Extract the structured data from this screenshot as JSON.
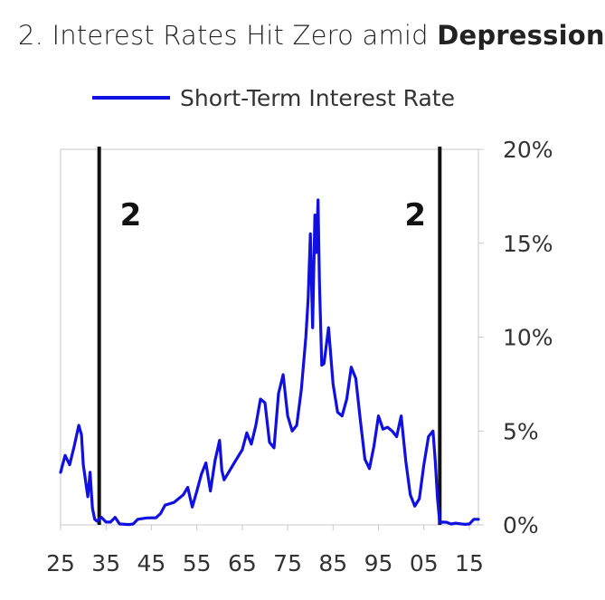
{
  "title": {
    "prefix": "2. Interest Rates Hit Zero amid ",
    "bold": "Depression"
  },
  "chart_data": {
    "type": "line",
    "title": "2. Interest Rates Hit Zero amid Depression",
    "xlabel": "",
    "ylabel": "",
    "xlim": [
      1925,
      2017
    ],
    "ylim": [
      0,
      20
    ],
    "x_tick_labels": [
      "25",
      "35",
      "45",
      "55",
      "65",
      "75",
      "85",
      "95",
      "05",
      "15"
    ],
    "x_tick_values": [
      1925,
      1935,
      1945,
      1955,
      1965,
      1975,
      1985,
      1995,
      2005,
      2015
    ],
    "y_tick_labels": [
      "0%",
      "5%",
      "10%",
      "15%",
      "20%"
    ],
    "y_tick_values": [
      0,
      5,
      10,
      15,
      20
    ],
    "y_axis_side": "right",
    "grid": false,
    "legend_position": "top-center",
    "series": [
      {
        "name": "Short-Term Interest Rate",
        "color": "#1010e0",
        "x": [
          1925,
          1926,
          1927,
          1928,
          1929,
          1929.6,
          1930,
          1931,
          1931.5,
          1932,
          1932.5,
          1933,
          1934,
          1935,
          1936,
          1937,
          1938,
          1940,
          1941,
          1942,
          1944,
          1946,
          1947,
          1948,
          1950,
          1952,
          1953,
          1954,
          1955,
          1956,
          1957,
          1958,
          1959,
          1960,
          1960.5,
          1961,
          1962,
          1963,
          1964,
          1965,
          1966,
          1967,
          1968,
          1969,
          1970,
          1971,
          1972,
          1973,
          1974,
          1975,
          1976,
          1977,
          1978,
          1979,
          1979.5,
          1980,
          1980.5,
          1981,
          1981.3,
          1981.7,
          1982,
          1982.5,
          1983,
          1984,
          1985,
          1986,
          1987,
          1988,
          1989,
          1990,
          1991,
          1992,
          1993,
          1994,
          1995,
          1996,
          1997,
          1998,
          1999,
          2000,
          2001,
          2002,
          2003,
          2004,
          2005,
          2006,
          2007,
          2007.5,
          2008,
          2008.5,
          2009,
          2010,
          2011,
          2012,
          2013,
          2014,
          2015,
          2016,
          2017
        ],
        "values": [
          2.8,
          3.7,
          3.2,
          4.2,
          5.3,
          4.8,
          3.2,
          1.5,
          2.8,
          0.9,
          0.3,
          0.2,
          0.4,
          0.15,
          0.15,
          0.4,
          0.05,
          0.02,
          0.05,
          0.3,
          0.37,
          0.38,
          0.6,
          1.05,
          1.2,
          1.6,
          2.0,
          0.95,
          1.8,
          2.7,
          3.3,
          1.8,
          3.4,
          4.5,
          2.9,
          2.4,
          2.8,
          3.2,
          3.6,
          4.0,
          4.9,
          4.3,
          5.3,
          6.7,
          6.5,
          4.4,
          4.1,
          7.0,
          8.0,
          5.8,
          5.0,
          5.3,
          7.2,
          10.0,
          12.0,
          15.5,
          10.5,
          16.5,
          14.5,
          17.3,
          13.0,
          8.5,
          8.6,
          10.5,
          7.5,
          6.0,
          5.8,
          6.7,
          8.4,
          7.8,
          5.6,
          3.5,
          3.0,
          4.2,
          5.8,
          5.1,
          5.2,
          5.0,
          4.7,
          5.8,
          3.4,
          1.6,
          1.0,
          1.4,
          3.2,
          4.7,
          5.0,
          3.4,
          1.4,
          0.1,
          0.15,
          0.14,
          0.05,
          0.09,
          0.06,
          0.03,
          0.05,
          0.3,
          0.3
        ]
      }
    ],
    "annotations": [
      {
        "label": "2",
        "x": 1933.5,
        "type": "vertical-line"
      },
      {
        "label": "2",
        "x": 2008.5,
        "type": "vertical-line"
      }
    ]
  }
}
